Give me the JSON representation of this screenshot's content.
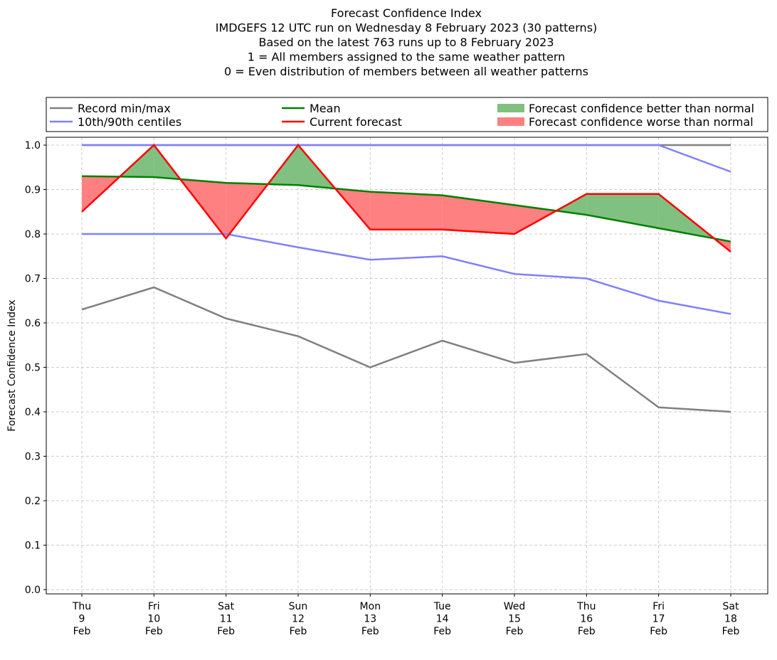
{
  "chart_data": {
    "type": "line",
    "title_lines": [
      "Forecast Confidence Index",
      "IMDGEFS 12 UTC run on Wednesday 8 February 2023 (30 patterns)",
      "Based on the latest 763 runs up to 8 February 2023",
      "1 = All members assigned to the same weather pattern",
      "0 = Even distribution of members between all weather patterns"
    ],
    "ylabel": "Forecast Confidence Index",
    "ylim": [
      0,
      1
    ],
    "yticks": [
      "0.0",
      "0.1",
      "0.2",
      "0.3",
      "0.4",
      "0.5",
      "0.6",
      "0.7",
      "0.8",
      "0.9",
      "1.0"
    ],
    "categories": [
      [
        "Thu",
        "9",
        "Feb"
      ],
      [
        "Fri",
        "10",
        "Feb"
      ],
      [
        "Sat",
        "11",
        "Feb"
      ],
      [
        "Sun",
        "12",
        "Feb"
      ],
      [
        "Mon",
        "13",
        "Feb"
      ],
      [
        "Tue",
        "14",
        "Feb"
      ],
      [
        "Wed",
        "15",
        "Feb"
      ],
      [
        "Thu",
        "16",
        "Feb"
      ],
      [
        "Fri",
        "17",
        "Feb"
      ],
      [
        "Sat",
        "18",
        "Feb"
      ]
    ],
    "grid": true,
    "legend_placement": "top",
    "series": [
      {
        "name": "Record min/max",
        "key": "rec_max",
        "color": "#808080",
        "values": [
          1,
          1,
          1,
          1,
          1,
          1,
          1,
          1,
          1,
          1
        ]
      },
      {
        "name": "Record min",
        "key": "rec_min",
        "color": "#808080",
        "values": [
          0.63,
          0.68,
          0.61,
          0.57,
          0.5,
          0.56,
          0.51,
          0.53,
          0.41,
          0.4
        ]
      },
      {
        "name": "10th/90th centiles",
        "key": "p90",
        "color": "#8080ff",
        "values": [
          1,
          1,
          1,
          1,
          1,
          1,
          1,
          1,
          1,
          0.94
        ]
      },
      {
        "name": "10th centile",
        "key": "p10",
        "color": "#8080ff",
        "values": [
          0.8,
          0.8,
          0.8,
          0.77,
          0.742,
          0.75,
          0.71,
          0.7,
          0.65,
          0.62
        ]
      },
      {
        "name": "Mean",
        "key": "mean",
        "color": "#008000",
        "values": [
          0.93,
          0.928,
          0.915,
          0.91,
          0.895,
          0.887,
          0.865,
          0.843,
          0.813,
          0.783
        ]
      },
      {
        "name": "Current forecast",
        "key": "current",
        "color": "#ff0000",
        "values": [
          0.85,
          1.0,
          0.79,
          1.0,
          0.81,
          0.81,
          0.8,
          0.89,
          0.89,
          0.76
        ]
      }
    ],
    "legend": {
      "record": "Record min/max",
      "centiles": "10th/90th centiles",
      "mean": "Mean",
      "current": "Current forecast",
      "better": "Forecast confidence better than normal",
      "worse": "Forecast confidence worse than normal"
    },
    "colors": {
      "better": "#80c080",
      "worse": "#ff8080",
      "record": "#808080",
      "centiles": "#8080ff",
      "mean": "#008000",
      "current": "#ff0000"
    }
  }
}
